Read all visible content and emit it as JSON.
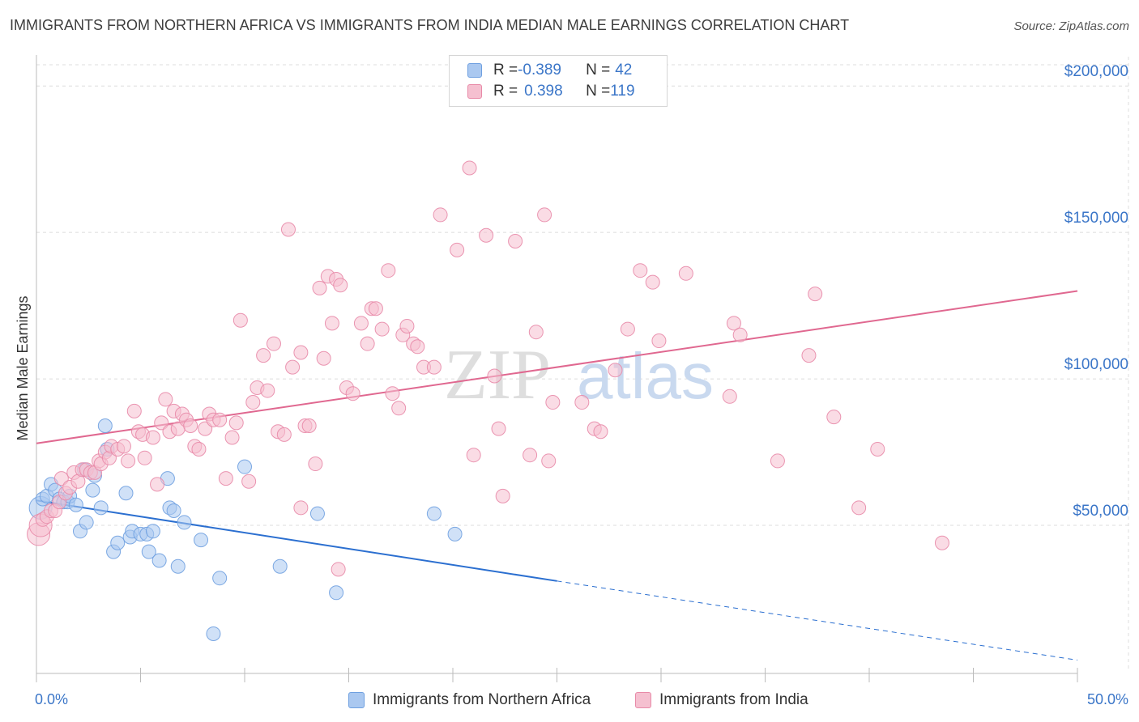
{
  "title": "IMMIGRANTS FROM NORTHERN AFRICA VS IMMIGRANTS FROM INDIA MEDIAN MALE EARNINGS CORRELATION CHART",
  "source": "Source: ZipAtlas.com",
  "watermark": {
    "zip": "ZIP",
    "atlas": "atlas"
  },
  "colors": {
    "blue": "#6fa0e0",
    "blue_fill": "#aac8f0",
    "blue_line": "#2b6fd0",
    "pink": "#e88aa8",
    "pink_fill": "#f5c0d0",
    "pink_line": "#e06890",
    "axis_label": "#3b76c8",
    "grid": "#dcdcdc"
  },
  "legend": {
    "rows": [
      {
        "r_label": "R = ",
        "r_value": "-0.389",
        "n_label": "N = ",
        "n_value": "42"
      },
      {
        "r_label": "R = ",
        "r_value": "0.398",
        "n_label": "N = ",
        "n_value": "119"
      }
    ]
  },
  "bottom_legend": {
    "blue": "Immigrants from Northern Africa",
    "pink": "Immigrants from India"
  },
  "chart_data": {
    "type": "scatter",
    "ylabel": "Median Male Earnings",
    "xlabel": "",
    "xlim": [
      0,
      50
    ],
    "ylim": [
      0,
      210000
    ],
    "x_tick_labels": {
      "left": "0.0%",
      "right": "50.0%"
    },
    "y_ticks": [
      {
        "value": 50000,
        "label": "$50,000"
      },
      {
        "value": 100000,
        "label": "$100,000"
      },
      {
        "value": 150000,
        "label": "$150,000"
      },
      {
        "value": 200000,
        "label": "$200,000"
      }
    ],
    "grid": true,
    "series": [
      {
        "name": "Immigrants from Northern Africa",
        "color_key": "blue",
        "points": [
          [
            0.2,
            56000
          ],
          [
            0.3,
            59000
          ],
          [
            0.5,
            60000
          ],
          [
            0.7,
            64000
          ],
          [
            0.9,
            62000
          ],
          [
            1.1,
            59000
          ],
          [
            1.3,
            58000
          ],
          [
            1.5,
            58000
          ],
          [
            1.6,
            60000
          ],
          [
            1.9,
            57000
          ],
          [
            2.1,
            48000
          ],
          [
            2.3,
            69000
          ],
          [
            2.4,
            51000
          ],
          [
            2.7,
            62000
          ],
          [
            2.8,
            67000
          ],
          [
            3.1,
            56000
          ],
          [
            3.3,
            84000
          ],
          [
            3.4,
            76000
          ],
          [
            3.7,
            41000
          ],
          [
            3.9,
            44000
          ],
          [
            4.3,
            61000
          ],
          [
            4.5,
            46000
          ],
          [
            4.6,
            48000
          ],
          [
            5.0,
            47000
          ],
          [
            5.3,
            47000
          ],
          [
            5.4,
            41000
          ],
          [
            5.6,
            48000
          ],
          [
            5.9,
            38000
          ],
          [
            6.3,
            66000
          ],
          [
            6.4,
            56000
          ],
          [
            6.6,
            55000
          ],
          [
            6.8,
            36000
          ],
          [
            7.1,
            51000
          ],
          [
            7.9,
            45000
          ],
          [
            8.5,
            13000
          ],
          [
            8.8,
            32000
          ],
          [
            10.0,
            70000
          ],
          [
            11.7,
            36000
          ],
          [
            13.5,
            54000
          ],
          [
            14.4,
            27000
          ],
          [
            19.1,
            54000
          ],
          [
            20.1,
            47000
          ]
        ],
        "trendline": {
          "x": [
            0,
            25
          ],
          "y": [
            58500,
            31000
          ],
          "dashed_to": [
            50,
            4000
          ]
        }
      },
      {
        "name": "Immigrants from India",
        "color_key": "pink",
        "points": [
          [
            0.1,
            47000
          ],
          [
            0.2,
            50000
          ],
          [
            0.3,
            52000
          ],
          [
            0.5,
            53000
          ],
          [
            0.7,
            55000
          ],
          [
            0.9,
            55000
          ],
          [
            1.1,
            58000
          ],
          [
            1.2,
            66000
          ],
          [
            1.4,
            61000
          ],
          [
            1.6,
            63000
          ],
          [
            1.8,
            68000
          ],
          [
            2.0,
            65000
          ],
          [
            2.2,
            69000
          ],
          [
            2.4,
            69000
          ],
          [
            2.6,
            68000
          ],
          [
            2.8,
            68000
          ],
          [
            3.0,
            72000
          ],
          [
            3.1,
            71000
          ],
          [
            3.3,
            75000
          ],
          [
            3.5,
            73000
          ],
          [
            3.6,
            77000
          ],
          [
            3.9,
            76000
          ],
          [
            4.2,
            77000
          ],
          [
            4.4,
            72000
          ],
          [
            4.7,
            89000
          ],
          [
            4.9,
            82000
          ],
          [
            5.1,
            81000
          ],
          [
            5.2,
            73000
          ],
          [
            5.6,
            80000
          ],
          [
            5.8,
            64000
          ],
          [
            6.0,
            85000
          ],
          [
            6.2,
            93000
          ],
          [
            6.4,
            82000
          ],
          [
            6.6,
            89000
          ],
          [
            6.8,
            83000
          ],
          [
            7.0,
            88000
          ],
          [
            7.2,
            86000
          ],
          [
            7.4,
            84000
          ],
          [
            7.6,
            77000
          ],
          [
            7.8,
            76000
          ],
          [
            8.1,
            83000
          ],
          [
            8.3,
            88000
          ],
          [
            8.5,
            86000
          ],
          [
            8.8,
            86000
          ],
          [
            9.1,
            66000
          ],
          [
            9.4,
            80000
          ],
          [
            9.6,
            85000
          ],
          [
            9.8,
            120000
          ],
          [
            10.2,
            65000
          ],
          [
            10.4,
            92000
          ],
          [
            10.6,
            97000
          ],
          [
            10.9,
            108000
          ],
          [
            11.1,
            96000
          ],
          [
            11.4,
            112000
          ],
          [
            11.6,
            82000
          ],
          [
            11.9,
            81000
          ],
          [
            12.1,
            151000
          ],
          [
            12.3,
            104000
          ],
          [
            12.7,
            109000
          ],
          [
            12.9,
            84000
          ],
          [
            13.1,
            84000
          ],
          [
            13.4,
            71000
          ],
          [
            13.6,
            131000
          ],
          [
            13.8,
            107000
          ],
          [
            14.0,
            135000
          ],
          [
            14.2,
            119000
          ],
          [
            14.4,
            134000
          ],
          [
            14.6,
            132000
          ],
          [
            14.9,
            97000
          ],
          [
            15.2,
            95000
          ],
          [
            15.6,
            119000
          ],
          [
            15.9,
            112000
          ],
          [
            16.1,
            124000
          ],
          [
            16.3,
            124000
          ],
          [
            16.6,
            117000
          ],
          [
            16.9,
            137000
          ],
          [
            17.1,
            95000
          ],
          [
            17.4,
            90000
          ],
          [
            17.6,
            115000
          ],
          [
            17.8,
            118000
          ],
          [
            18.1,
            112000
          ],
          [
            18.3,
            111000
          ],
          [
            18.6,
            104000
          ],
          [
            19.1,
            104000
          ],
          [
            19.4,
            156000
          ],
          [
            20.2,
            144000
          ],
          [
            20.8,
            172000
          ],
          [
            21.0,
            74000
          ],
          [
            21.6,
            149000
          ],
          [
            22.0,
            101000
          ],
          [
            22.2,
            83000
          ],
          [
            22.4,
            60000
          ],
          [
            23.0,
            147000
          ],
          [
            23.7,
            74000
          ],
          [
            24.0,
            116000
          ],
          [
            24.4,
            156000
          ],
          [
            24.6,
            72000
          ],
          [
            24.8,
            92000
          ],
          [
            26.2,
            92000
          ],
          [
            26.8,
            83000
          ],
          [
            27.1,
            82000
          ],
          [
            27.8,
            103000
          ],
          [
            28.4,
            117000
          ],
          [
            29.0,
            137000
          ],
          [
            29.6,
            133000
          ],
          [
            29.9,
            113000
          ],
          [
            31.2,
            136000
          ],
          [
            33.3,
            94000
          ],
          [
            33.5,
            119000
          ],
          [
            33.8,
            115000
          ],
          [
            35.6,
            72000
          ],
          [
            37.1,
            108000
          ],
          [
            37.4,
            129000
          ],
          [
            38.3,
            87000
          ],
          [
            39.5,
            56000
          ],
          [
            14.5,
            35000
          ],
          [
            12.7,
            56000
          ],
          [
            40.4,
            76000
          ],
          [
            43.5,
            44000
          ]
        ],
        "trendline": {
          "x": [
            0,
            50
          ],
          "y": [
            78000,
            130000
          ]
        }
      }
    ]
  }
}
